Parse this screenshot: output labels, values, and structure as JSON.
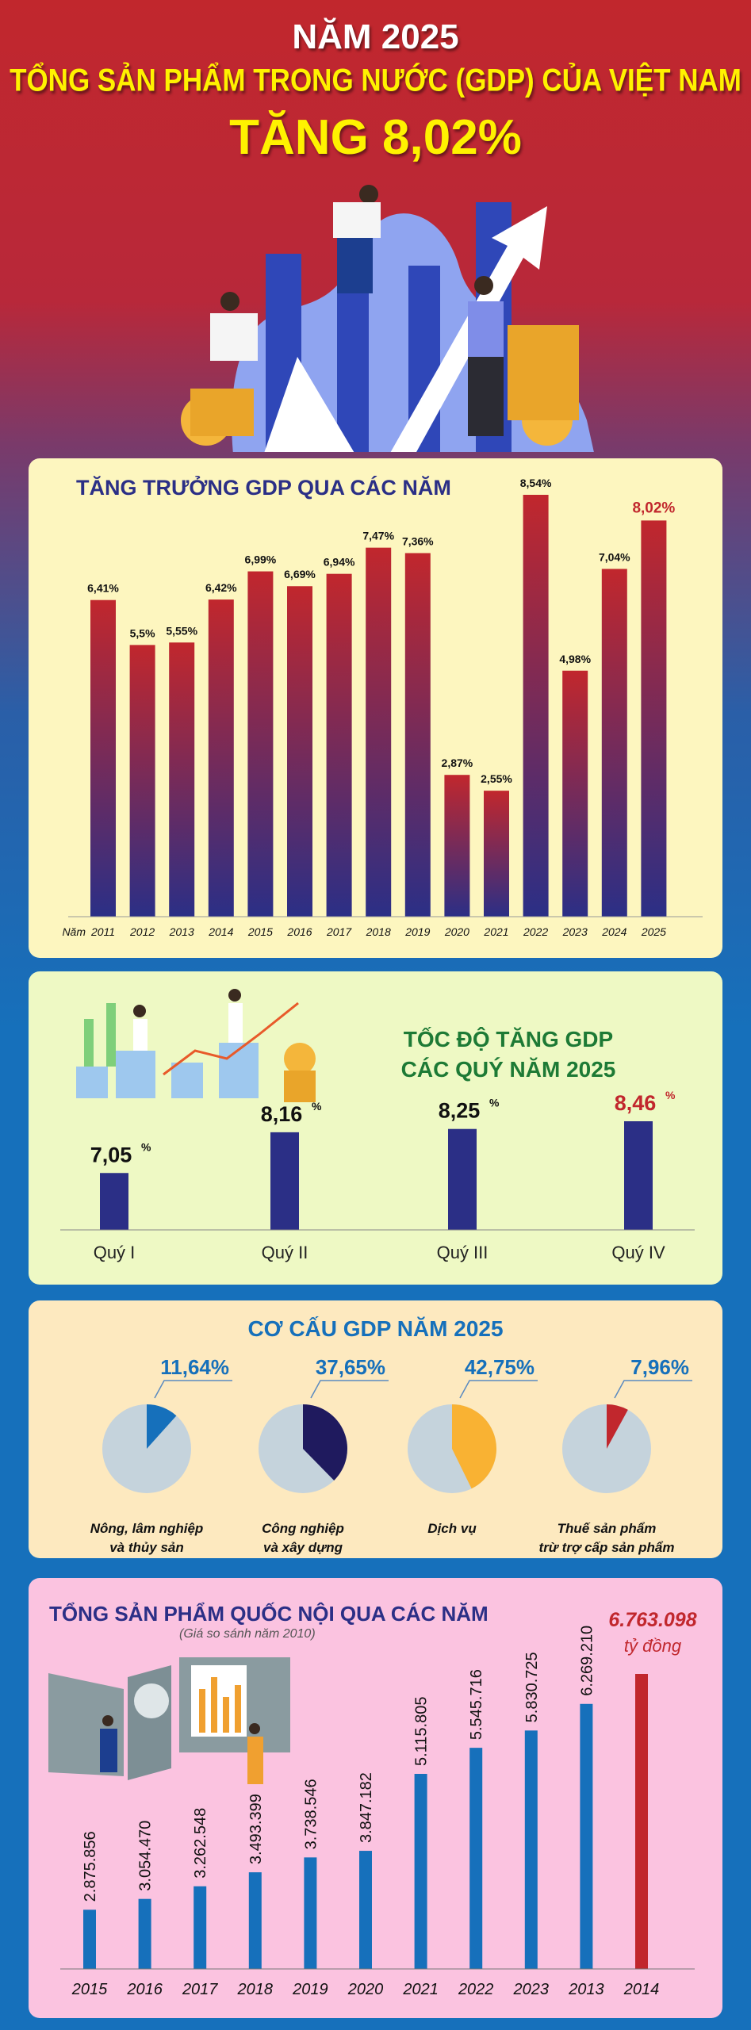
{
  "header": {
    "line1": "NĂM 2025",
    "line2": "TỔNG SẢN PHẨM TRONG NƯỚC (GDP) CỦA VIỆT NAM",
    "line3": "TĂNG 8,02%"
  },
  "colors": {
    "red": "#c1272d",
    "navy": "#2b2f86",
    "blue": "#1670bb",
    "yellow": "#fff200",
    "grey": "#c5d3dc",
    "orange": "#f9b233",
    "darknavy": "#1f1a5e"
  },
  "chart_data": [
    {
      "type": "bar",
      "title": "TĂNG TRƯỞNG GDP QUA CÁC NĂM",
      "xlabel": "Năm",
      "unit": "%",
      "categories": [
        "2011",
        "2012",
        "2013",
        "2014",
        "2015",
        "2016",
        "2017",
        "2018",
        "2019",
        "2020",
        "2021",
        "2022",
        "2023",
        "2024",
        "2025"
      ],
      "values": [
        6.41,
        5.5,
        5.55,
        6.42,
        6.99,
        6.69,
        6.94,
        7.47,
        7.36,
        2.87,
        2.55,
        8.54,
        4.98,
        7.04,
        8.02
      ],
      "labels": [
        "6,41%",
        "5,5%",
        "5,55%",
        "6,42%",
        "6,99%",
        "6,69%",
        "6,94%",
        "7,47%",
        "7,36%",
        "2,87%",
        "2,55%",
        "8,54%",
        "4,98%",
        "7,04%",
        "8,02%"
      ],
      "highlight": "2025",
      "ylim": [
        0,
        8.54
      ]
    },
    {
      "type": "bar",
      "title": "TỐC ĐỘ TĂNG GDP",
      "subtitle": "CÁC QUÝ NĂM 2025",
      "categories": [
        "Quý I",
        "Quý II",
        "Quý III",
        "Quý IV"
      ],
      "values": [
        7.05,
        8.16,
        8.25,
        8.46
      ],
      "labels": [
        "7,05",
        "8,16",
        "8,25",
        "8,46"
      ],
      "unit": "%",
      "highlight": "Quý IV",
      "ylim": [
        5.5,
        9
      ]
    },
    {
      "type": "pie",
      "title": "CƠ CẤU GDP NĂM 2025",
      "slices": [
        {
          "name": "Nông, lâm nghiệp|và thủy sản",
          "value": 11.64,
          "label": "11,64%",
          "color": "#1670bb"
        },
        {
          "name": "Công nghiệp|và xây dựng",
          "value": 37.65,
          "label": "37,65%",
          "color": "#1f1a5e"
        },
        {
          "name": "Dịch vụ",
          "value": 42.75,
          "label": "42,75%",
          "color": "#f9b233"
        },
        {
          "name": "Thuế sản phẩm|trừ trợ cấp sản phẩm",
          "value": 7.96,
          "label": "7,96%",
          "color": "#c1272d"
        }
      ]
    },
    {
      "type": "bar",
      "title": "TỔNG SẢN PHẨM QUỐC NỘI QUA CÁC NĂM",
      "subtitle": "(Giá so sánh năm 2010)",
      "categories": [
        "2015",
        "2016",
        "2017",
        "2018",
        "2019",
        "2020",
        "2021",
        "2022",
        "2023",
        "2013",
        "2014"
      ],
      "values": [
        2875856,
        3054470,
        3262548,
        3493399,
        3738546,
        3847182,
        5115805,
        5545716,
        5830725,
        6269210,
        6763098
      ],
      "labels": [
        "2.875.856",
        "3.054.470",
        "3.262.548",
        "3.493.399",
        "3.738.546",
        "3.847.182",
        "5.115.805",
        "5.545.716",
        "5.830.725",
        "6.269.210",
        "6.763.098"
      ],
      "unit": "tỷ đồng",
      "highlight": "2014",
      "ylim": [
        1900000,
        6763098
      ]
    }
  ]
}
